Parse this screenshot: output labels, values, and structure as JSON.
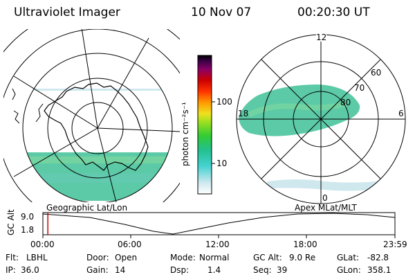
{
  "header": {
    "title": "Ultraviolet Imager",
    "date": "10 Nov 07",
    "time": "00:20:30 UT"
  },
  "left_panel": {
    "caption": "Geographic Lat/Lon"
  },
  "right_panel": {
    "caption": "Apex MLat/MLT",
    "mlt_labels": {
      "top": "12",
      "left": "18",
      "right": "6",
      "bottom": "0"
    },
    "lat_labels": [
      "60",
      "70",
      "80"
    ]
  },
  "colorbar": {
    "label": "photon cm⁻²s⁻¹",
    "ticks": [
      "100",
      "10"
    ],
    "scale": "log",
    "colors": [
      "#ffffff",
      "#cfe8ee",
      "#44d2d2",
      "#22c08c",
      "#33cc33",
      "#9ee020",
      "#f0e020",
      "#ff9900",
      "#ff3300",
      "#cc0000",
      "#8a0066",
      "#3a0044",
      "#000000"
    ]
  },
  "timeline": {
    "ylabel": "GC Alt",
    "y_ticks": [
      "9.0",
      "1.8"
    ],
    "x_ticks": [
      "00:00",
      "06:00",
      "12:00",
      "18:00",
      "23:59"
    ],
    "y_range": [
      1.8,
      9.0
    ],
    "current_time_hours": 0.34
  },
  "status": {
    "row1": [
      {
        "label": "Flt:",
        "value": "LBHL"
      },
      {
        "label": "Door:",
        "value": "Open"
      },
      {
        "label": "Mode:",
        "value": "Normal"
      },
      {
        "label": "GC Alt:",
        "value": "9.0 Re"
      },
      {
        "label": "GLat:",
        "value": "-82.8"
      }
    ],
    "row2": [
      {
        "label": "IP:",
        "value": "36.0"
      },
      {
        "label": "Gain:",
        "value": "14"
      },
      {
        "label": "Dsp:",
        "value": "1.4"
      },
      {
        "label": "Seq:",
        "value": "39"
      },
      {
        "label": "GLon:",
        "value": "358.1"
      }
    ]
  }
}
